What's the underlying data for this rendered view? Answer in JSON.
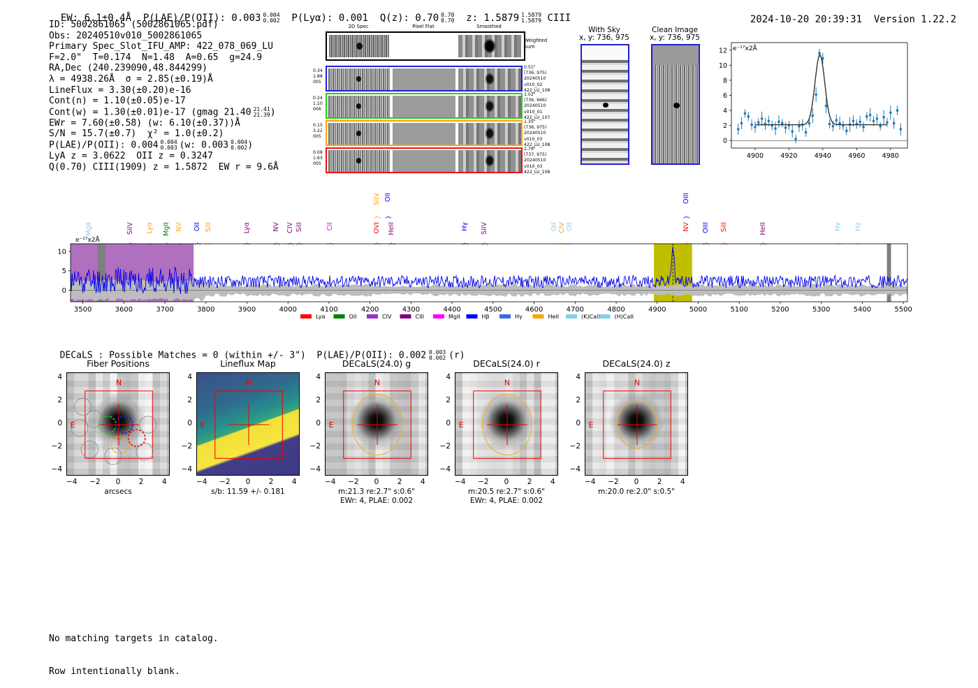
{
  "header": {
    "ew": "EW: 6.1±0.4Å",
    "plae": "P(LAE)/P(OII): 0.003",
    "plae_hi": "0.004",
    "plae_lo": "0.002",
    "plya": "P(Lyα): 0.001",
    "qz": "Q(z): 0.70",
    "qz_hi": "0.70",
    "qz_lo": "0.70",
    "z": "z: 1.5879",
    "z_hi": "1.5879",
    "z_lo": "1.5879",
    "z_line": "CIII",
    "datetime": "2024-10-20 20:39:31",
    "version": "Version 1.22.2"
  },
  "info": {
    "id": "ID: 5002861065 (5002861065.pdf)",
    "obs": "Obs: 20240510v010_5002861065",
    "primary": "Primary Spec_Slot_IFU_AMP: 422_078_069_LU",
    "fwhm": "F=2.0\"  T=0.174  N=1.48  A=0.65  g=24.9",
    "radec": "RA,Dec (240.239090,48.844299)",
    "lambda": "λ = 4938.26Å  σ = 2.85(±0.19)Å",
    "lineflux": "LineFlux = 3.30(±0.20)e-16",
    "contn": "Cont(n) = 1.10(±0.05)e-17",
    "contw": "Cont(w) = 1.30(±0.01)e-17 (gmag 21.40",
    "contw_hi": "21.41",
    "contw_lo": "21.39",
    "ewr": "EWr = 7.60(±0.58) (w: 6.10(±0.37))Å",
    "sn": "S/N = 15.7(±0.7)  χ² = 1.0(±0.2)",
    "plae2": "P(LAE)/P(OII): 0.004",
    "plae2_hi": "0.004",
    "plae2_lo": "0.003",
    "plae2_w": "(w: 0.003",
    "plae2_w_hi": "0.004",
    "plae2_w_lo": "0.002",
    "lya": "LyA z = 3.0622  OII z = 0.3247",
    "q": "Q(0.70) CIII(1909) z = 1.5872  EW r = 9.6Å"
  },
  "cutouts": {
    "col_titles": [
      "2D Spec",
      "Pixel Flat",
      "Smoothed"
    ],
    "weighted_label_1": "Weighted",
    "weighted_label_2": "Sum",
    "rows": [
      {
        "left": "0.34\n1.88\n005",
        "right": "0.51\"\n(736, 975)\n20240510\nv010_02\n422_LU_108",
        "color": "#1f1fd0"
      },
      {
        "left": "0.24\n1.10\n006",
        "right": "1.02\"\n(736, 966)\n20240510\nv010_01\n422_LU_107",
        "color": "#22cc22"
      },
      {
        "left": "0.15\n3.22\n005",
        "right": "1.35\"\n(736, 975)\n20240510\nv010_03\n422_LU_108",
        "color": "#ffa500"
      },
      {
        "left": "0.08\n1.63\n005",
        "right": "1.79\"\n(737, 975)\n20240510\nv010_03\n422_LU_108",
        "color": "#ee1111"
      }
    ]
  },
  "sky_panels": {
    "with_sky_title": "With Sky",
    "with_sky_coords": "x, y: 736, 975",
    "clean_title": "Clean Image",
    "clean_coords": "x, y: 736, 975"
  },
  "zoom_chart": {
    "ylabel": "e⁻¹⁷x2Å",
    "xticks": [
      "4900",
      "4920",
      "4940",
      "4960",
      "4980"
    ],
    "yticks": [
      "0",
      "2",
      "4",
      "6",
      "8",
      "10",
      "12"
    ]
  },
  "line_labels": [
    {
      "name": "MgII",
      "wl": 3516,
      "color": "#87ceeb",
      "row": 1
    },
    {
      "name": "SiIV",
      "wl": 3616,
      "color": "#800080",
      "row": 1
    },
    {
      "name": "Lyα",
      "wl": 3664,
      "color": "#ffa500",
      "row": 1
    },
    {
      "name": "MgII",
      "wl": 3705,
      "color": "#008000",
      "row": 1
    },
    {
      "name": "NV",
      "wl": 3735,
      "color": "#ffa500",
      "row": 1
    },
    {
      "name": "OII",
      "wl": 3780,
      "color": "#0000ff",
      "row": 1
    },
    {
      "name": "SiII",
      "wl": 3807,
      "color": "#ffa500",
      "row": 1
    },
    {
      "name": "Lyα",
      "wl": 3900,
      "color": "#800080",
      "row": 1
    },
    {
      "name": "NV",
      "wl": 3973,
      "color": "#800080",
      "row": 1
    },
    {
      "name": "CIV",
      "wl": 4007,
      "color": "#800080",
      "row": 1
    },
    {
      "name": "SiII",
      "wl": 4029,
      "color": "#800080",
      "row": 1
    },
    {
      "name": "CII",
      "wl": 4103,
      "color": "#ff00ff",
      "row": 1
    },
    {
      "name": "SiIV",
      "wl": 4218,
      "color": "#ffa500",
      "row": 0
    },
    {
      "name": "OII",
      "wl": 4245,
      "color": "#0000ff",
      "row": 0
    },
    {
      "name": "OVI",
      "wl": 4218,
      "color": "#ff0000",
      "row": 1
    },
    {
      "name": "HeII",
      "wl": 4253,
      "color": "#800080",
      "row": 1
    },
    {
      "name": "Hγ",
      "wl": 4432,
      "color": "#0000ff",
      "row": 1
    },
    {
      "name": "SiIV",
      "wl": 4479,
      "color": "#800080",
      "row": 1
    },
    {
      "name": "OII",
      "wl": 4650,
      "color": "#87ceeb",
      "row": 1
    },
    {
      "name": "CIV",
      "wl": 4668,
      "color": "#ffa500",
      "row": 1
    },
    {
      "name": "OII",
      "wl": 4687,
      "color": "#87ceeb",
      "row": 1
    },
    {
      "name": "OIII",
      "wl": 4972,
      "color": "#0000ff",
      "row": 0
    },
    {
      "name": "NV",
      "wl": 4972,
      "color": "#ff0000",
      "row": 1
    },
    {
      "name": "OIII",
      "wl": 5019,
      "color": "#0000ff",
      "row": 1
    },
    {
      "name": "SiII",
      "wl": 5064,
      "color": "#ff0000",
      "row": 1
    },
    {
      "name": "HeII",
      "wl": 5160,
      "color": "#800080",
      "row": 1
    },
    {
      "name": "Hγ",
      "wl": 5342,
      "color": "#87ceeb",
      "row": 1
    },
    {
      "name": "Hγ",
      "wl": 5390,
      "color": "#87ceeb",
      "row": 1
    }
  ],
  "chart_data": {
    "type": "line",
    "title": "",
    "ylabel": "e⁻¹⁷x2Å",
    "xlim": [
      3470,
      5510
    ],
    "ylim": [
      -3,
      12
    ],
    "xticks": [
      3500,
      3600,
      3700,
      3800,
      3900,
      4000,
      4100,
      4200,
      4300,
      4400,
      4500,
      4600,
      4700,
      4800,
      4900,
      5000,
      5100,
      5200,
      5300,
      5400,
      5500
    ],
    "yticks": [
      0,
      5,
      10
    ],
    "emission_line_wl": 4938.26,
    "highlight_band": [
      4892,
      4985
    ],
    "blue_band": [
      3470,
      3770
    ],
    "masked_bands": [
      [
        3535,
        3555
      ],
      [
        5460,
        5470
      ]
    ],
    "legend": [
      {
        "label": "Lyα",
        "color": "#ff0000"
      },
      {
        "label": "OII",
        "color": "#008000"
      },
      {
        "label": "CIV",
        "color": "#9932cc"
      },
      {
        "label": "CIII",
        "color": "#800080"
      },
      {
        "label": "MgII",
        "color": "#ff00ff"
      },
      {
        "label": "Hβ",
        "color": "#0000ff"
      },
      {
        "label": "Hγ",
        "color": "#4169e1"
      },
      {
        "label": "HeII",
        "color": "#ffa500"
      },
      {
        "label": "(K)CaII",
        "color": "#87ceeb"
      },
      {
        "label": "(H)CaII",
        "color": "#87ceeb"
      }
    ],
    "zoom": {
      "xlim": [
        4886,
        4990
      ],
      "ylim": [
        -1,
        13
      ],
      "peak_x": 4938.26,
      "peak_y": 11.4,
      "sigma": 2.85,
      "continuum": 2.1,
      "points_x": [
        4890,
        4892,
        4894,
        4896,
        4898,
        4900,
        4902,
        4904,
        4906,
        4908,
        4910,
        4912,
        4914,
        4916,
        4918,
        4920,
        4922,
        4924,
        4926,
        4928,
        4930,
        4932,
        4934,
        4936,
        4938,
        4940,
        4942,
        4944,
        4946,
        4948,
        4950,
        4952,
        4954,
        4956,
        4958,
        4960,
        4962,
        4964,
        4966,
        4968,
        4970,
        4972,
        4974,
        4976,
        4978,
        4980,
        4982,
        4984,
        4986
      ],
      "points_y": [
        1.5,
        2.3,
        3.6,
        3.2,
        2.1,
        1.8,
        2.4,
        2.9,
        2.2,
        2.6,
        2.0,
        1.6,
        2.5,
        2.3,
        1.7,
        2.0,
        1.2,
        0.2,
        1.9,
        2.1,
        1.1,
        2.3,
        3.3,
        6.1,
        11.6,
        10.9,
        4.6,
        2.2,
        1.9,
        2.7,
        2.3,
        2.0,
        1.3,
        2.1,
        2.6,
        2.2,
        2.5,
        1.8,
        3.2,
        3.4,
        2.6,
        2.9,
        1.9,
        3.1,
        2.4,
        3.7,
        2.3,
        4.0,
        1.5
      ]
    }
  },
  "decals": {
    "caption": "DECaLS : Possible Matches = 0 (within +/- 3\")  P(LAE)/P(OII): 0.002",
    "caption_hi": "0.003",
    "caption_lo": "0.002",
    "caption_tail": "(r)",
    "panels": [
      {
        "title": "Fiber Positions",
        "xlabel": "arcsecs",
        "sub": ""
      },
      {
        "title": "Lineflux Map",
        "xlabel": "s/b: 11.59 +/- 0.181",
        "sub": ""
      },
      {
        "title": "DECaLS(24.0) g",
        "xlabel": "m:21.3  re:2.7\"  s:0.6\"",
        "sub": "EWr: 4, PLAE: 0.002"
      },
      {
        "title": "DECaLS(24.0) r",
        "xlabel": "m:20.5  re:2.7\"  s:0.6\"",
        "sub": "EWr: 4, PLAE: 0.002"
      },
      {
        "title": "DECaLS(24.0) z",
        "xlabel": "m:20.0  re:2.0\"  s:0.5\"",
        "sub": ""
      }
    ],
    "ticks": [
      "−4",
      "−2",
      "0",
      "2",
      "4"
    ],
    "north": "N",
    "east": "E"
  },
  "footer": {
    "line1": "No matching targets in catalog.",
    "line2": "Row intentionally blank."
  }
}
